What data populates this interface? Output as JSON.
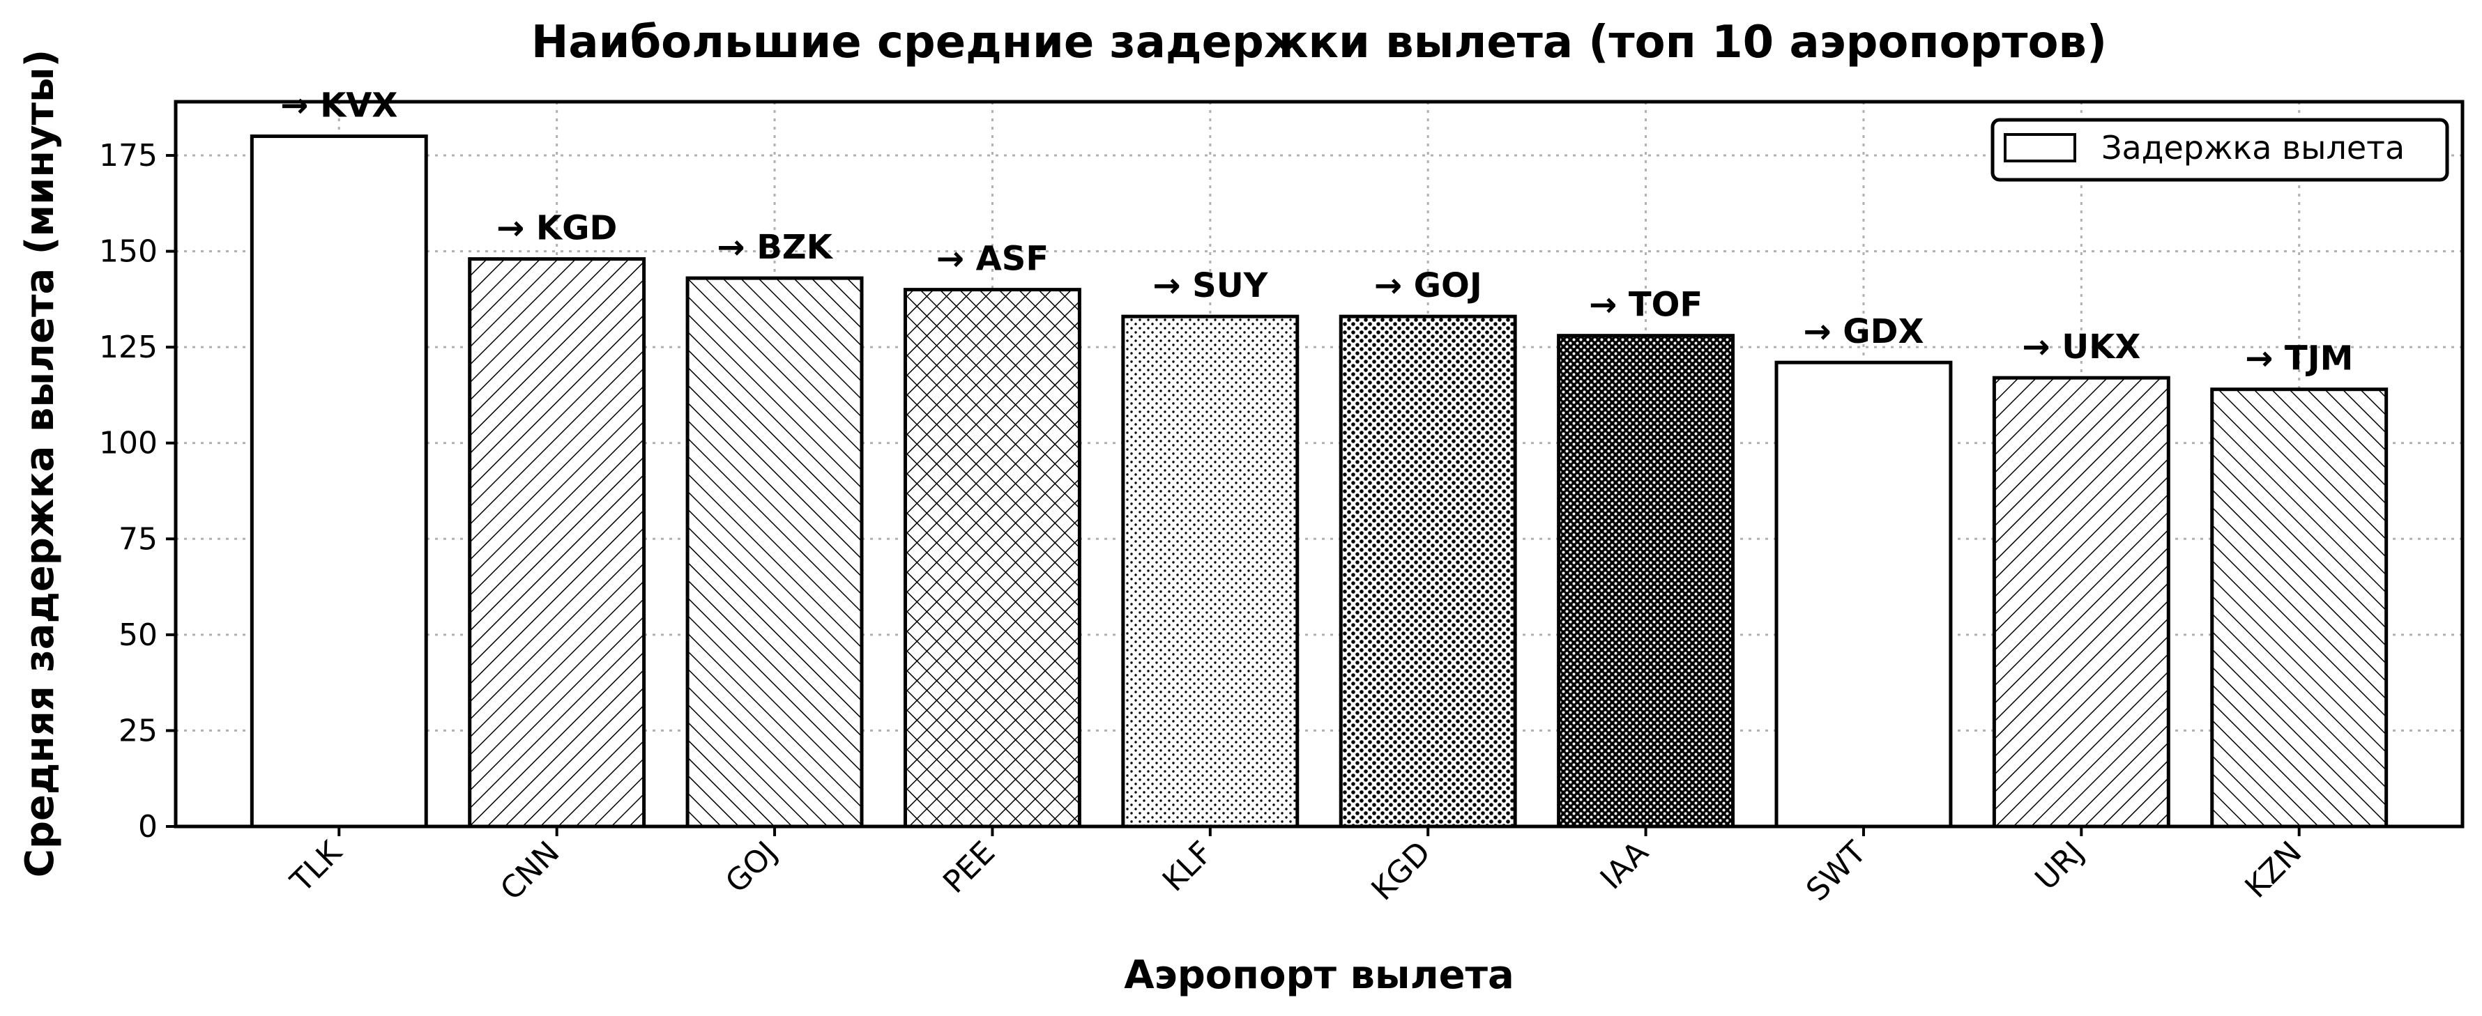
{
  "chart_data": {
    "type": "bar",
    "title": "Наибольшие средние задержки вылета (топ 10 аэропортов)",
    "xlabel": "Аэропорт вылета",
    "ylabel": "Средняя задержка вылета (минуты)",
    "categories": [
      "TLK",
      "CNN",
      "GOJ",
      "PEE",
      "KLF",
      "KGD",
      "IAA",
      "SWT",
      "URJ",
      "KZN"
    ],
    "values": [
      180,
      148,
      143,
      140,
      133,
      133,
      128,
      121,
      117,
      114
    ],
    "annotations": [
      "→ KVX",
      "→ KGD",
      "→ BZK",
      "→ ASF",
      "→ SUY",
      "→ GOJ",
      "→ TOF",
      "→ GDX",
      "→ UKX",
      "→ TJM"
    ],
    "hatches": [
      "none",
      "fwd",
      "back",
      "cross",
      "dots-sparse",
      "dots",
      "dots-dense",
      "none",
      "fwd",
      "back"
    ],
    "ylim": [
      0,
      189
    ],
    "yticks": [
      0,
      25,
      50,
      75,
      100,
      125,
      150,
      175
    ],
    "grid": true,
    "legend": {
      "position": "top-right",
      "entries": [
        "Задержка вылета"
      ]
    },
    "colors": {
      "bar_fill": "#ffffff",
      "bar_edge": "#000000",
      "grid": "#b0b0b0"
    }
  }
}
